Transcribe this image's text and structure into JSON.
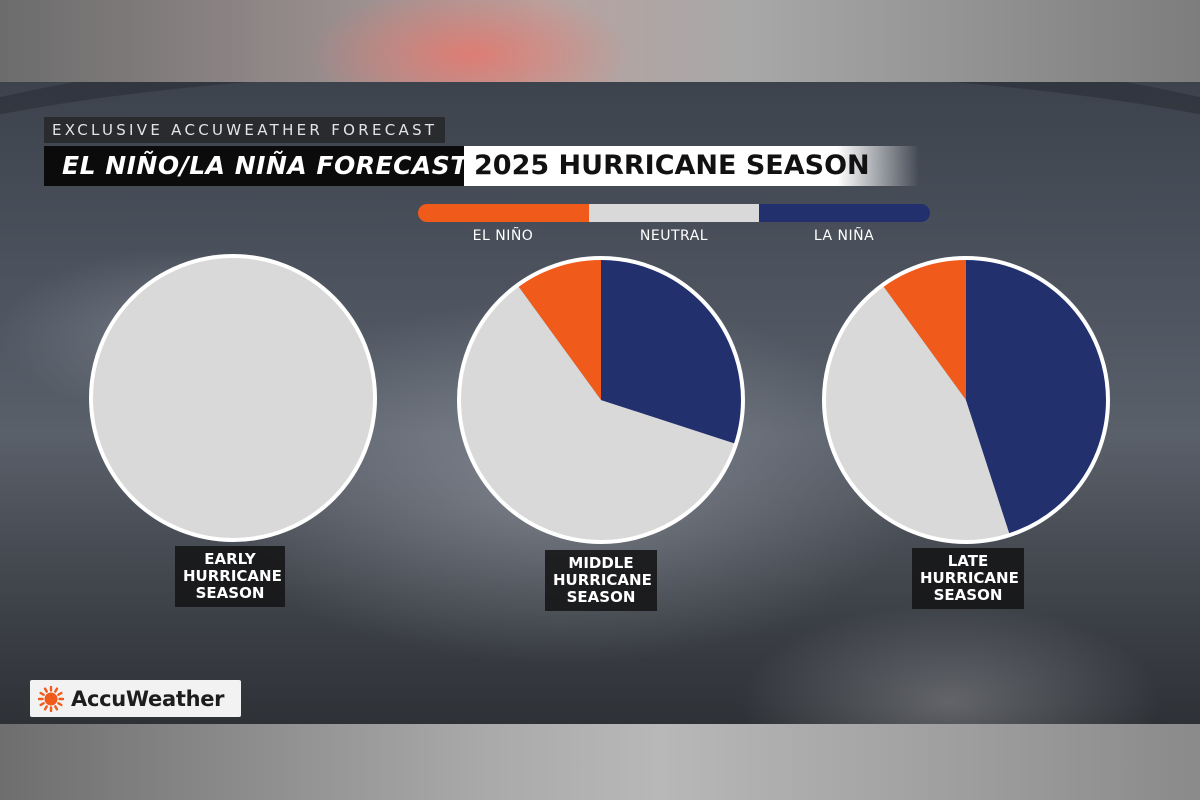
{
  "header": {
    "kicker": "EXCLUSIVE ACCUWEATHER FORECAST",
    "title_left": "EL NIÑO/LA NIÑA FORECAST",
    "title_right": "2025 HURRICANE SEASON"
  },
  "legend": {
    "items": [
      {
        "label": "EL NIÑO",
        "color": "#f05a1a"
      },
      {
        "label": "NEUTRAL",
        "color": "#d9d9d9"
      },
      {
        "label": "LA NIÑA",
        "color": "#22306e"
      }
    ]
  },
  "chart_data": [
    {
      "type": "pie",
      "title": "EARLY HURRICANE SEASON",
      "title_lines": [
        "EARLY",
        "HURRICANE",
        "SEASON"
      ],
      "categories": [
        "EL NIÑO",
        "NEUTRAL",
        "LA NIÑA"
      ],
      "values": [
        0,
        100,
        0
      ]
    },
    {
      "type": "pie",
      "title": "MIDDLE HURRICANE SEASON",
      "title_lines": [
        "MIDDLE",
        "HURRICANE",
        "SEASON"
      ],
      "categories": [
        "EL NIÑO",
        "NEUTRAL",
        "LA NIÑA"
      ],
      "values": [
        10,
        60,
        30
      ]
    },
    {
      "type": "pie",
      "title": "LATE HURRICANE SEASON",
      "title_lines": [
        "LATE",
        "HURRICANE",
        "SEASON"
      ],
      "categories": [
        "EL NIÑO",
        "NEUTRAL",
        "LA NIÑA"
      ],
      "values": [
        10,
        45,
        45
      ]
    }
  ],
  "branding": {
    "logo_text": "AccuWeather",
    "logo_icon": "sun-icon",
    "logo_color": "#f05a1a"
  }
}
